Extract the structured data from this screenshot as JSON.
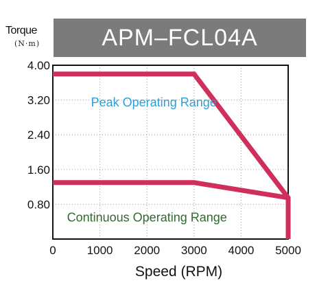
{
  "header": {
    "y_axis_title": "Torque",
    "y_axis_unit": "(N·m)",
    "model_title": "APM–FCL04A"
  },
  "colors": {
    "curve": "#cf2f5a",
    "title_bar": "#7b7b7b",
    "grid": "#9a9a9a",
    "peak_text": "#2a9fd8",
    "continuous_text": "#2f6a2e"
  },
  "chart_data": {
    "type": "line",
    "title": "APM–FCL04A",
    "xlabel": "Speed (RPM)",
    "ylabel": "Torque (N·m)",
    "xlim": [
      0,
      5000
    ],
    "ylim": [
      0,
      4.0
    ],
    "x_ticks": [
      "0",
      "1000",
      "2000",
      "3000",
      "4000",
      "5000"
    ],
    "x_tick_values": [
      0,
      1000,
      2000,
      3000,
      4000,
      5000
    ],
    "y_ticks": [
      "0.80",
      "1.60",
      "2.40",
      "3.20",
      "4.00"
    ],
    "y_tick_values": [
      0.8,
      1.6,
      2.4,
      3.2,
      4.0
    ],
    "grid": true,
    "series": [
      {
        "x": [
          0,
          3000,
          5000,
          5000
        ],
        "y": [
          3.8,
          3.8,
          0.95,
          0
        ]
      },
      {
        "x": [
          0,
          3000,
          5000
        ],
        "y": [
          1.3,
          1.3,
          0.95
        ]
      }
    ],
    "annotations": [
      {
        "text": "Peak Operating Range",
        "x": 2000,
        "y": 3.05
      },
      {
        "text": "Continuous Operating Range",
        "x": 2000,
        "y": 0.4
      }
    ]
  }
}
